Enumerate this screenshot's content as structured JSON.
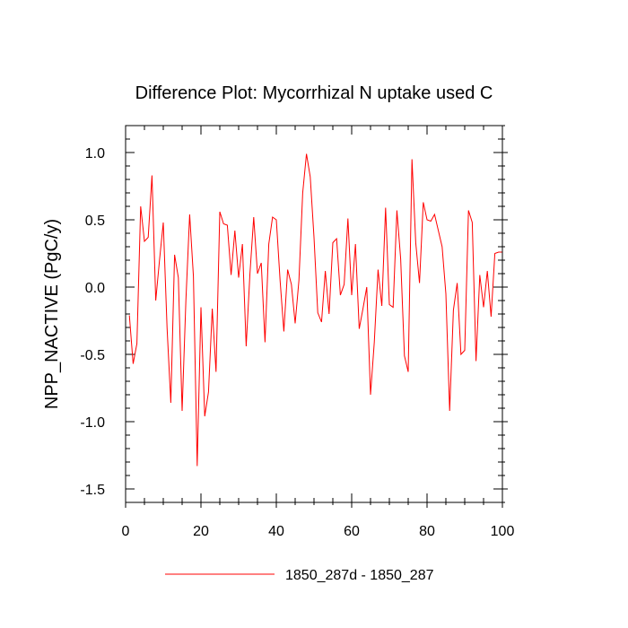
{
  "chart_data": {
    "type": "line",
    "title": "Difference Plot: Mycorrhizal N uptake used C",
    "xlabel": "",
    "ylabel": "NPP_NACTIVE  (PgC/y)",
    "xlim": [
      0,
      100
    ],
    "ylim": [
      -1.6,
      1.2
    ],
    "x_ticks": [
      0,
      20,
      40,
      60,
      80,
      100
    ],
    "x_tick_labels": [
      "0",
      "20",
      "40",
      "60",
      "80",
      "100"
    ],
    "y_ticks": [
      -1.5,
      -1.0,
      -0.5,
      0.0,
      0.5,
      1.0
    ],
    "y_tick_labels": [
      "-1.5",
      "-1.0",
      "-0.5",
      "0.0",
      "0.5",
      "1.0"
    ],
    "grid": false,
    "legend_position": "bottom-center",
    "series": [
      {
        "name": "1850_287d - 1850_287",
        "color": "#ff0000",
        "x": [
          1,
          2,
          3,
          4,
          5,
          6,
          7,
          8,
          9,
          10,
          11,
          12,
          13,
          14,
          15,
          16,
          17,
          18,
          19,
          20,
          21,
          22,
          23,
          24,
          25,
          26,
          27,
          28,
          29,
          30,
          31,
          32,
          33,
          34,
          35,
          36,
          37,
          38,
          39,
          40,
          41,
          42,
          43,
          44,
          45,
          46,
          47,
          48,
          49,
          50,
          51,
          52,
          53,
          54,
          55,
          56,
          57,
          58,
          59,
          60,
          61,
          62,
          63,
          64,
          65,
          66,
          67,
          68,
          69,
          70,
          71,
          72,
          73,
          74,
          75,
          76,
          77,
          78,
          79,
          80,
          81,
          82,
          83,
          84,
          85,
          86,
          87,
          88,
          89,
          90,
          91,
          92,
          93,
          94,
          95,
          96,
          97,
          98,
          99,
          100
        ],
        "values": [
          -0.21,
          -0.57,
          -0.42,
          0.6,
          0.34,
          0.37,
          0.83,
          -0.1,
          0.2,
          0.48,
          -0.3,
          -0.86,
          0.24,
          0.07,
          -0.92,
          -0.1,
          0.54,
          0.08,
          -1.33,
          -0.15,
          -0.96,
          -0.78,
          -0.16,
          -0.63,
          0.56,
          0.47,
          0.46,
          0.09,
          0.42,
          0.07,
          0.32,
          -0.44,
          0.1,
          0.52,
          0.1,
          0.18,
          -0.41,
          0.32,
          0.52,
          0.5,
          0.05,
          -0.33,
          0.13,
          0.02,
          -0.27,
          0.05,
          0.7,
          0.99,
          0.82,
          0.37,
          -0.19,
          -0.26,
          0.12,
          -0.2,
          0.33,
          0.36,
          -0.06,
          0.02,
          0.51,
          -0.06,
          0.32,
          -0.31,
          -0.16,
          0.0,
          -0.8,
          -0.41,
          0.13,
          -0.14,
          0.59,
          -0.13,
          -0.15,
          0.57,
          0.21,
          -0.51,
          -0.63,
          0.95,
          0.33,
          0.03,
          0.63,
          0.5,
          0.49,
          0.54,
          0.42,
          0.3,
          -0.05,
          -0.92,
          -0.17,
          0.03,
          -0.5,
          -0.47,
          0.57,
          0.48,
          -0.55,
          0.09,
          -0.15,
          0.12,
          -0.22,
          0.25,
          0.26,
          0.26
        ]
      }
    ]
  }
}
